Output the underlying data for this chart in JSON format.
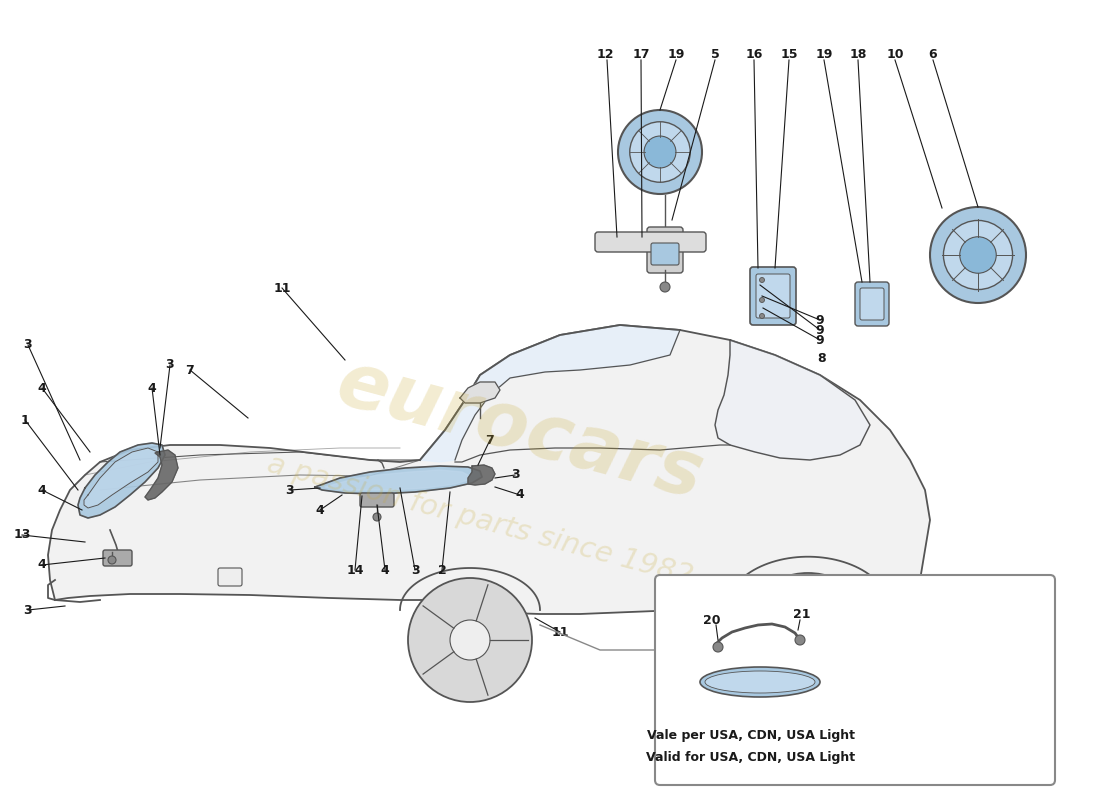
{
  "bg_color": "#ffffff",
  "outline_color": "#555555",
  "light_fill": "#a8c8e0",
  "light_fill2": "#c0d8ec",
  "dark_fill": "#888888",
  "watermark_color": "#c8a832",
  "inset_text_line1": "Vale per USA, CDN, USA Light",
  "inset_text_line2": "Valid for USA, CDN, USA Light",
  "font_size_labels": 9,
  "font_size_inset": 8
}
